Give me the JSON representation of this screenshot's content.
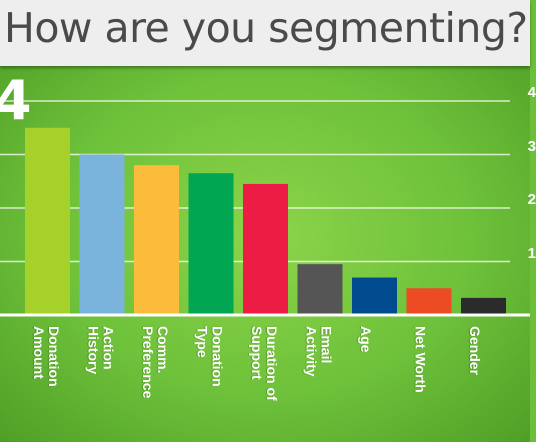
{
  "title": "How are you segmenting?",
  "chart_data": {
    "type": "bar",
    "categories": [
      "Donation Amount",
      "Action History",
      "Comm. Preference",
      "Donation Type",
      "Duration of Support",
      "Email Activity",
      "Age",
      "Net Worth",
      "Gender"
    ],
    "label_lines": [
      [
        "Donation",
        "Amount"
      ],
      [
        "Action",
        "History"
      ],
      [
        "Comm.",
        "Preference"
      ],
      [
        "Donation",
        "Type"
      ],
      [
        "Duration of",
        "Support"
      ],
      [
        "Email",
        "Activity"
      ],
      [
        "Age"
      ],
      [
        "Net Worth"
      ],
      [
        "Gender"
      ]
    ],
    "values": [
      3.5,
      3.0,
      2.8,
      2.65,
      2.45,
      0.95,
      0.7,
      0.5,
      0.32
    ],
    "colors": [
      "#a6d12a",
      "#7ab4dc",
      "#fbbc3c",
      "#00a651",
      "#ed1c45",
      "#555555",
      "#004b8d",
      "#ed4b24",
      "#2b2b2b"
    ],
    "y_ticks": [
      "1",
      "2",
      "3",
      "4"
    ],
    "y_tick_values": [
      1,
      2,
      3,
      4
    ],
    "highlight_label": "4",
    "ylim": [
      0,
      4.5
    ],
    "grid": true
  }
}
